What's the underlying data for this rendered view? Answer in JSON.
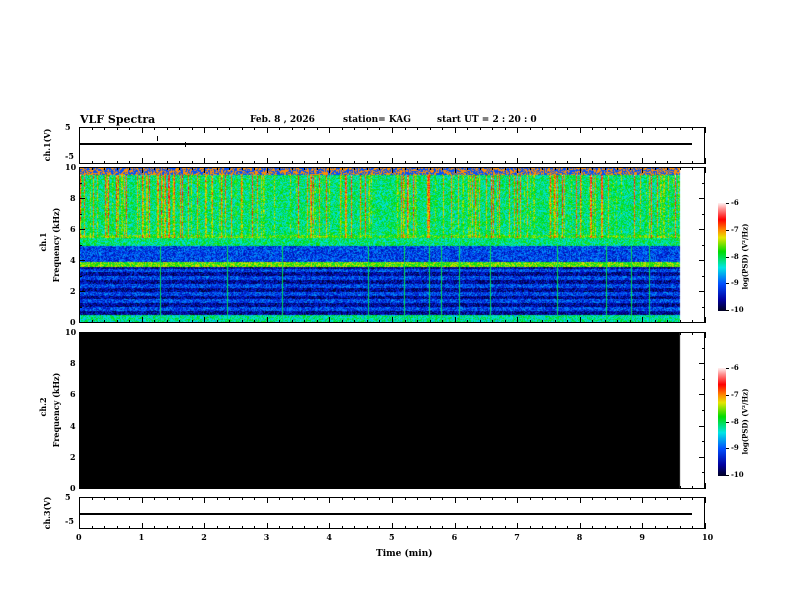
{
  "header": {
    "title": "VLF Spectra",
    "date": "Feb. 8 , 2026",
    "station": "station= KAG",
    "start": "start  UT =   2 : 20 : 0"
  },
  "colors": {
    "background": "#ffffff",
    "axis": "#000000",
    "no_data": "#000000"
  },
  "chart_data": [
    {
      "type": "line",
      "name": "ch1",
      "ylabel": "ch.1(V)",
      "ylim": [
        -5,
        5
      ],
      "yticks": [
        "5",
        "-5"
      ],
      "xlim": [
        0,
        10
      ],
      "level": 0,
      "x_end": 9.8
    },
    {
      "type": "heatmap",
      "name": "ch1-spectrogram",
      "ylabel": "ch.1\nFrequency (kHz)",
      "ylabel_top": "ch.1",
      "ylabel_bottom": "Frequency (kHz)",
      "ylim": [
        0,
        10
      ],
      "yticks": [
        "0",
        "2",
        "4",
        "6",
        "8",
        "10"
      ],
      "xlim": [
        0,
        9.8
      ],
      "colorbar": {
        "label": "log(PSD) (V²/Hz)",
        "range": [
          -10,
          -6
        ],
        "ticks": [
          "-6",
          "-7",
          "-8",
          "-9",
          "-10"
        ]
      },
      "features": [
        {
          "band_khz": [
            0,
            0.5
          ],
          "level": -8.5
        },
        {
          "band_khz": [
            0.5,
            4
          ],
          "level": -9.5
        },
        {
          "band_khz": [
            3.6,
            3.9
          ],
          "level": -7.5
        },
        {
          "band_khz": [
            4,
            5
          ],
          "level": -9
        },
        {
          "band_khz": [
            5,
            10
          ],
          "level": -8
        },
        {
          "band_khz": [
            6,
            10
          ],
          "level": -7,
          "note": "bursts"
        }
      ]
    },
    {
      "type": "heatmap",
      "name": "ch2-spectrogram",
      "ylabel_top": "ch.2",
      "ylabel_bottom": "Frequency (kHz)",
      "ylim": [
        0,
        10
      ],
      "yticks": [
        "0",
        "2",
        "4",
        "6",
        "8",
        "10"
      ],
      "xlim": [
        0,
        9.8
      ],
      "colorbar": {
        "label": "log(PSD) (V²/Hz)",
        "range": [
          -10,
          -6
        ],
        "ticks": [
          "-6",
          "-7",
          "-8",
          "-9",
          "-10"
        ]
      },
      "features": [
        {
          "band_khz": [
            0,
            10
          ],
          "level": -10
        }
      ]
    },
    {
      "type": "line",
      "name": "ch3",
      "ylabel": "ch.3(V)",
      "ylim": [
        -5,
        5
      ],
      "yticks": [
        "5",
        "-5"
      ],
      "xlim": [
        0,
        10
      ],
      "level": 0,
      "x_end": 9.8
    }
  ],
  "xaxis": {
    "label": "Time (min)",
    "ticks": [
      "0",
      "1",
      "2",
      "3",
      "4",
      "5",
      "6",
      "7",
      "8",
      "9",
      "10"
    ]
  }
}
